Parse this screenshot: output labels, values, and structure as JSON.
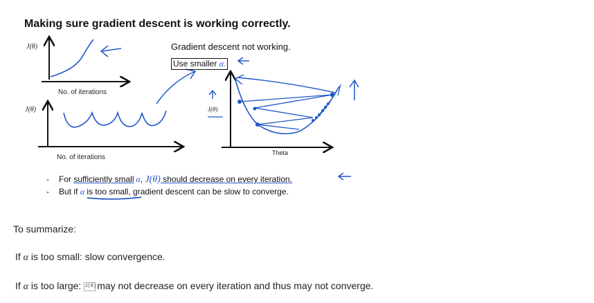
{
  "slide": {
    "title": "Making sure gradient descent is working correctly.",
    "plot1": {
      "ylabel": "J(θ)",
      "xlabel": "No. of iterations"
    },
    "plot2": {
      "ylabel": "J(θ)",
      "xlabel": "No. of iterations"
    },
    "plot3": {
      "ylabel": "J(θ)",
      "xlabel": "Theta"
    },
    "note_title": "Gradient descent not working.",
    "note_action_prefix": "Use smaller ",
    "note_action_symbol": "α.",
    "bullets": [
      {
        "pre": "For ",
        "u1": "sufficiently small",
        "sym1": " α",
        "mid": ", ",
        "sym2": "J(θ)",
        "u2": " should decrease on every iteration."
      },
      {
        "pre": "But if ",
        "sym1": "α",
        "u1": " is too small",
        "post": ", gradient descent can be slow to converge."
      }
    ]
  },
  "summary": {
    "intro": "To summarize:",
    "line1_prefix": "If ",
    "line1_symbol": "α",
    "line1_text": " is too small: slow convergence.",
    "line2_prefix": "If ",
    "line2_symbol": "α",
    "line2_text": " is too large: ",
    "line2_icon_text": "J(θ)",
    "line2_rest": "may not decrease on every iteration and thus may not converge."
  },
  "colors": {
    "ink": "#1f56c9",
    "axis": "#111111"
  }
}
